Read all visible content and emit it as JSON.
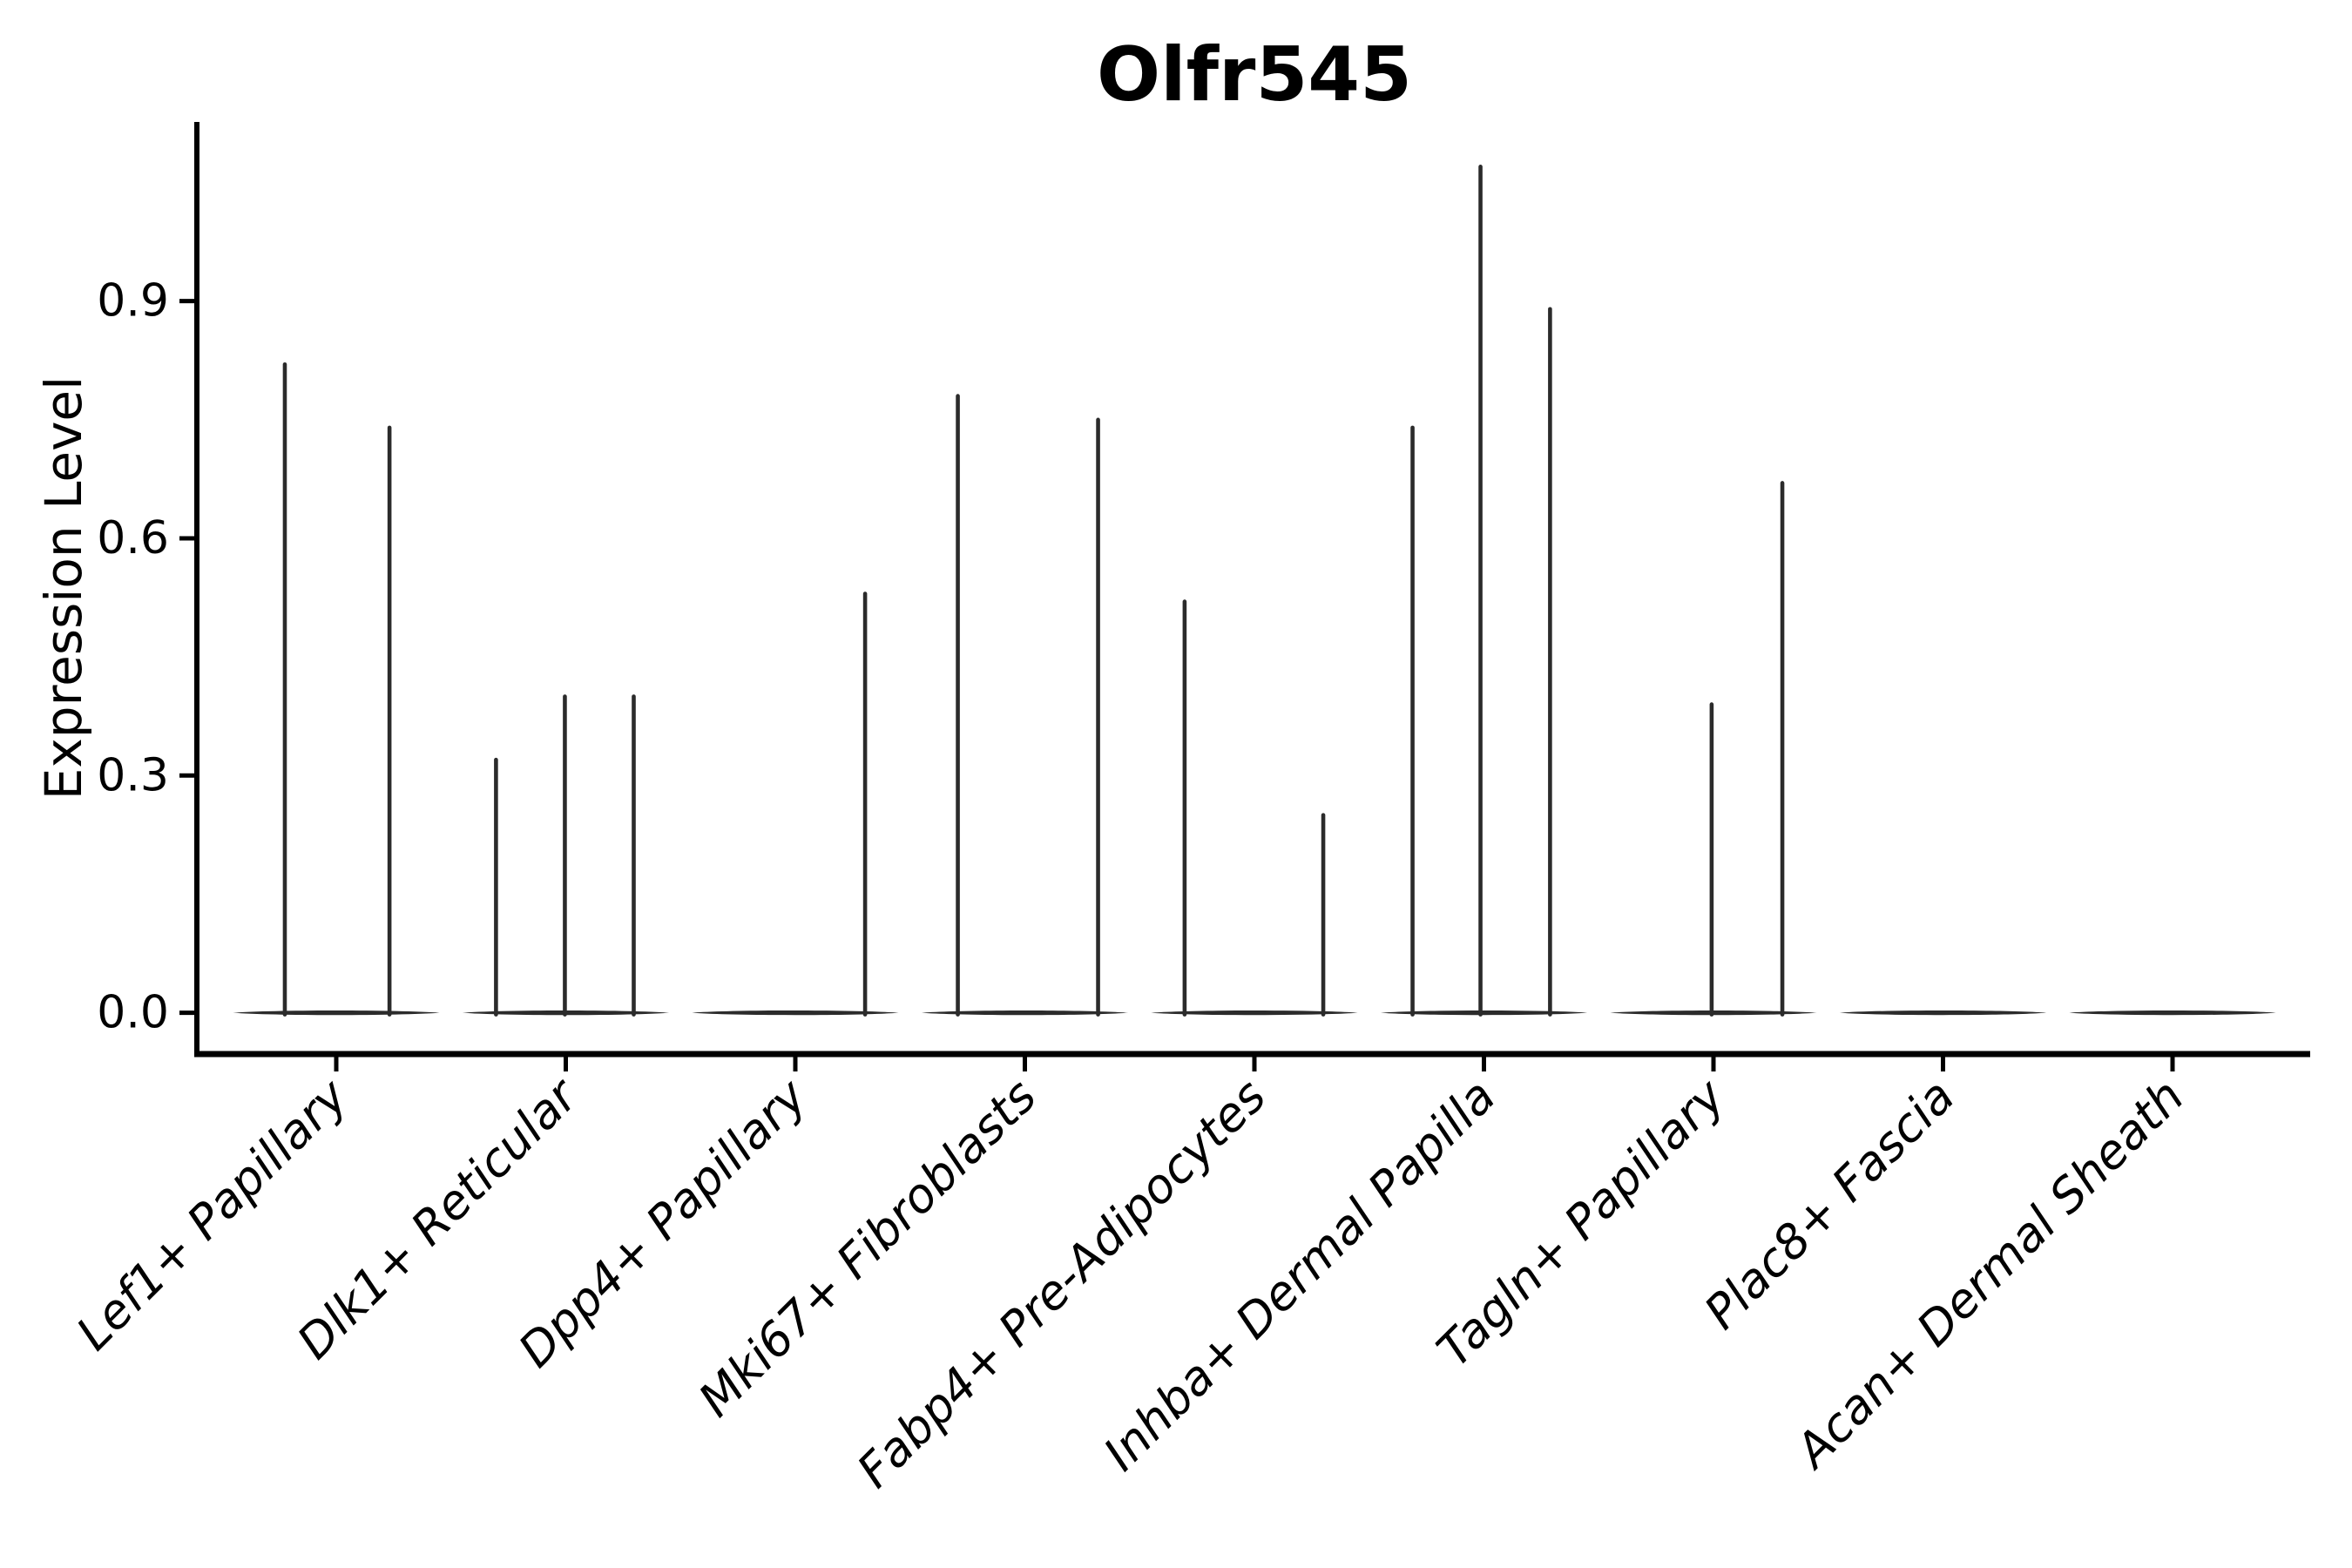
{
  "figure": {
    "title": "Olfr545",
    "background": "#ffffff"
  },
  "chart_data": {
    "type": "violin",
    "title": "Olfr545",
    "xlabel": "",
    "ylabel": "Expression Level",
    "categories": [
      "Lef1+ Papillary",
      "Dlk1+ Reticular",
      "Dpp4+ Papillary",
      "Mki67+ Fibroblasts",
      "Fabp4+ Pre-Adipocytes",
      "Inhba+ Dermal Papilla",
      "Tagln+ Papillary",
      "Plac8+ Fascia",
      "Acan+ Dermal Sheath"
    ],
    "y_ticks": [
      "0.0",
      "0.3",
      "0.6",
      "0.9"
    ],
    "ylim": [
      -0.054,
      1.127
    ],
    "x_tick_rotation_deg": 45,
    "x_tick_style": "italic",
    "violin_width": 0.9,
    "grid": false,
    "legend": "none",
    "series": [
      {
        "category": "Lef1+ Papillary",
        "baseline_value": 0,
        "spikes": [
          {
            "offset": -0.224,
            "value": 0.82
          },
          {
            "offset": 0.232,
            "value": 0.74
          }
        ]
      },
      {
        "category": "Dlk1+ Reticular",
        "baseline_value": 0,
        "spikes": [
          {
            "offset": -0.304,
            "value": 0.32
          },
          {
            "offset": -0.004,
            "value": 0.4
          },
          {
            "offset": 0.296,
            "value": 0.4
          }
        ]
      },
      {
        "category": "Dpp4+ Papillary",
        "baseline_value": 0,
        "spikes": [
          {
            "offset": 0.304,
            "value": 0.53
          }
        ]
      },
      {
        "category": "Mki67+ Fibroblasts",
        "baseline_value": 0,
        "spikes": [
          {
            "offset": -0.292,
            "value": 0.78
          },
          {
            "offset": 0.319,
            "value": 0.75
          }
        ]
      },
      {
        "category": "Fabp4+ Pre-Adipocytes",
        "baseline_value": 0,
        "spikes": [
          {
            "offset": -0.304,
            "value": 0.52
          },
          {
            "offset": 0.3,
            "value": 0.25
          }
        ]
      },
      {
        "category": "Inhba+ Dermal Papilla",
        "baseline_value": 0,
        "spikes": [
          {
            "offset": -0.311,
            "value": 0.74
          },
          {
            "offset": -0.015,
            "value": 1.07
          },
          {
            "offset": 0.288,
            "value": 0.89
          }
        ]
      },
      {
        "category": "Tagln+ Papillary",
        "baseline_value": 0,
        "spikes": [
          {
            "offset": -0.008,
            "value": 0.39
          },
          {
            "offset": 0.3,
            "value": 0.67
          }
        ]
      },
      {
        "category": "Plac8+ Fascia",
        "baseline_value": 0,
        "spikes": []
      },
      {
        "category": "Acan+ Dermal Sheath",
        "baseline_value": 0,
        "spikes": []
      }
    ],
    "style": {
      "violin_color": "#2b2b2b",
      "axis_color": "#000000",
      "text_color": "#000000",
      "background": "#ffffff"
    }
  }
}
